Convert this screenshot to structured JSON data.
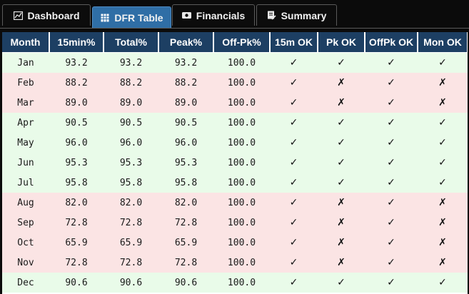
{
  "tabs": [
    {
      "label": "Dashboard",
      "icon": "chart-icon",
      "active": false
    },
    {
      "label": "DFR Table",
      "icon": "table-icon",
      "active": true
    },
    {
      "label": "Financials",
      "icon": "money-icon",
      "active": false
    },
    {
      "label": "Summary",
      "icon": "document-icon",
      "active": false
    }
  ],
  "table": {
    "headers": [
      "Month",
      "15min%",
      "Total%",
      "Peak%",
      "Off-Pk%",
      "15m OK",
      "Pk OK",
      "OffPk OK",
      "Mon OK"
    ],
    "rows": [
      {
        "status": "pass",
        "cells": [
          "Jan",
          "93.2",
          "93.2",
          "93.2",
          "100.0",
          "✓",
          "✓",
          "✓",
          "✓"
        ]
      },
      {
        "status": "fail",
        "cells": [
          "Feb",
          "88.2",
          "88.2",
          "88.2",
          "100.0",
          "✓",
          "✗",
          "✓",
          "✗"
        ]
      },
      {
        "status": "fail",
        "cells": [
          "Mar",
          "89.0",
          "89.0",
          "89.0",
          "100.0",
          "✓",
          "✗",
          "✓",
          "✗"
        ]
      },
      {
        "status": "pass",
        "cells": [
          "Apr",
          "90.5",
          "90.5",
          "90.5",
          "100.0",
          "✓",
          "✓",
          "✓",
          "✓"
        ]
      },
      {
        "status": "pass",
        "cells": [
          "May",
          "96.0",
          "96.0",
          "96.0",
          "100.0",
          "✓",
          "✓",
          "✓",
          "✓"
        ]
      },
      {
        "status": "pass",
        "cells": [
          "Jun",
          "95.3",
          "95.3",
          "95.3",
          "100.0",
          "✓",
          "✓",
          "✓",
          "✓"
        ]
      },
      {
        "status": "pass",
        "cells": [
          "Jul",
          "95.8",
          "95.8",
          "95.8",
          "100.0",
          "✓",
          "✓",
          "✓",
          "✓"
        ]
      },
      {
        "status": "fail",
        "cells": [
          "Aug",
          "82.0",
          "82.0",
          "82.0",
          "100.0",
          "✓",
          "✗",
          "✓",
          "✗"
        ]
      },
      {
        "status": "fail",
        "cells": [
          "Sep",
          "72.8",
          "72.8",
          "72.8",
          "100.0",
          "✓",
          "✗",
          "✓",
          "✗"
        ]
      },
      {
        "status": "fail",
        "cells": [
          "Oct",
          "65.9",
          "65.9",
          "65.9",
          "100.0",
          "✓",
          "✗",
          "✓",
          "✗"
        ]
      },
      {
        "status": "fail",
        "cells": [
          "Nov",
          "72.8",
          "72.8",
          "72.8",
          "100.0",
          "✓",
          "✗",
          "✓",
          "✗"
        ]
      },
      {
        "status": "pass",
        "cells": [
          "Dec",
          "90.6",
          "90.6",
          "90.6",
          "100.0",
          "✓",
          "✓",
          "✓",
          "✓"
        ]
      }
    ]
  },
  "colors": {
    "header_bg": "#1d3f63",
    "active_tab": "#2f6ea6",
    "pass_row": "#e9fbe9",
    "fail_row": "#fbe4e4"
  }
}
